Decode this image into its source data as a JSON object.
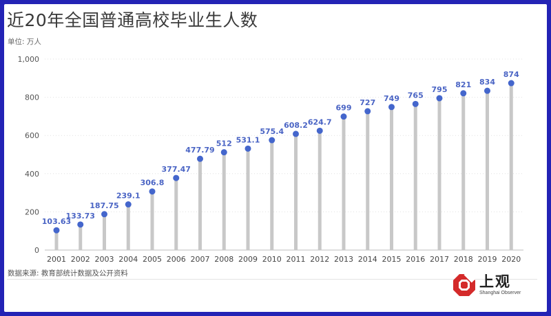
{
  "title": "近20年全国普通高校毕业生人数",
  "unit_label": "单位: 万人",
  "source_label": "数据来源: 教育部统计数据及公开资料",
  "logo": {
    "name": "上观",
    "subtitle": "Shanghai Observer"
  },
  "colors": {
    "frame": "#2323b5",
    "point": "#4466cc",
    "label": "#4a64c4",
    "stem": "#c8c8c8",
    "grid": "#e0e0e0",
    "logo_red": "#d42a2a"
  },
  "chart_data": {
    "type": "lollipop",
    "title": "近20年全国普通高校毕业生人数",
    "ylabel": "单位: 万人",
    "xlabel": "",
    "ylim": [
      0,
      1000
    ],
    "y_ticks": [
      0,
      200,
      400,
      600,
      800,
      1000
    ],
    "y_tick_labels": [
      "0",
      "200",
      "400",
      "600",
      "800",
      "1,000"
    ],
    "grid": true,
    "categories": [
      "2001",
      "2002",
      "2003",
      "2004",
      "2005",
      "2006",
      "2007",
      "2008",
      "2009",
      "2010",
      "2011",
      "2012",
      "2013",
      "2014",
      "2015",
      "2016",
      "2017",
      "2018",
      "2019",
      "2020"
    ],
    "values": [
      103.63,
      133.73,
      187.75,
      239.1,
      306.8,
      377.47,
      477.79,
      512,
      531.1,
      575.4,
      608.2,
      624.7,
      699,
      727,
      749,
      765,
      795,
      821,
      834,
      874
    ],
    "value_labels": [
      "103.63",
      "133.73",
      "187.75",
      "239.1",
      "306.8",
      "377.47",
      "477.79",
      "512",
      "531.1",
      "575.4",
      "608.2",
      "624.7",
      "699",
      "727",
      "749",
      "765",
      "795",
      "821",
      "834",
      "874"
    ]
  }
}
